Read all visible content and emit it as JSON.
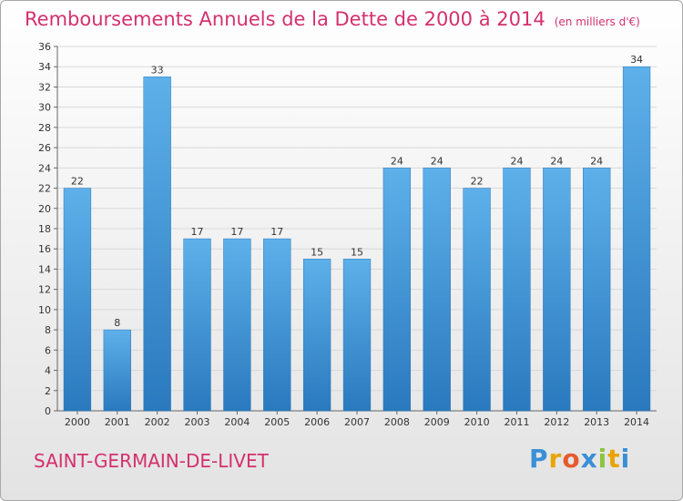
{
  "title": "Remboursements Annuels de la Dette de 2000 à 2014",
  "unit": "(en milliers d'€)",
  "commune": "SAINT-GERMAIN-DE-LIVET",
  "logo": {
    "letters": [
      "P",
      "r",
      "o",
      "x",
      "i",
      "t",
      "i"
    ],
    "colors": [
      "#3a8fd6",
      "#e8a400",
      "#e65b2e",
      "#3a8fd6",
      "#8cc43c",
      "#e8a400",
      "#3a8fd6"
    ]
  },
  "colors": {
    "accent": "#d4306e",
    "bar_light": "#5eb0ea",
    "bar_dark": "#2a79be",
    "grid": "#d9d9d9"
  },
  "chart_data": {
    "type": "bar",
    "title": "Remboursements Annuels de la Dette de 2000 à 2014",
    "xlabel": "",
    "ylabel": "",
    "categories": [
      "2000",
      "2001",
      "2002",
      "2003",
      "2004",
      "2005",
      "2006",
      "2007",
      "2008",
      "2009",
      "2010",
      "2011",
      "2012",
      "2013",
      "2014"
    ],
    "values": [
      22,
      8,
      33,
      17,
      17,
      17,
      15,
      15,
      24,
      24,
      22,
      24,
      24,
      24,
      34
    ],
    "value_labels": [
      "22",
      "8",
      "33",
      "17",
      "17",
      "17",
      "15",
      "15",
      "24",
      "24",
      "22",
      "24",
      "24",
      "24",
      "34"
    ],
    "ylim": [
      0,
      36
    ],
    "yticks": [
      0,
      2,
      4,
      6,
      8,
      10,
      12,
      14,
      16,
      18,
      20,
      22,
      24,
      26,
      28,
      30,
      32,
      34,
      36
    ],
    "grid": true
  }
}
